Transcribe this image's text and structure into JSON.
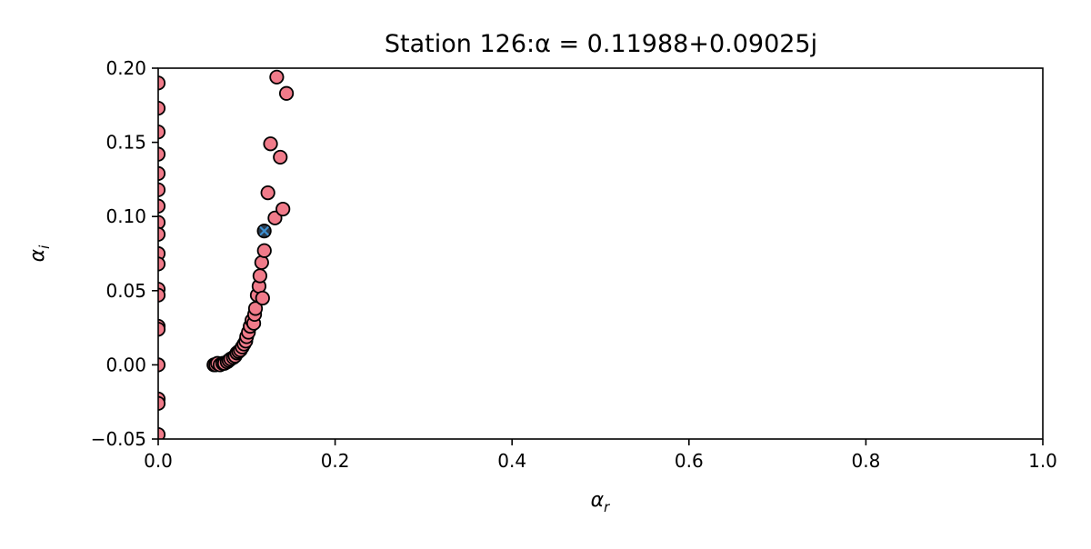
{
  "chart_data": {
    "type": "scatter",
    "title": "Station 126:α = 0.11988+0.09025j",
    "xlabel": {
      "symbol": "α",
      "subscript": "r"
    },
    "ylabel": {
      "symbol": "α",
      "subscript": "i"
    },
    "xlim": [
      0.0,
      1.0
    ],
    "ylim": [
      -0.05,
      0.2
    ],
    "xticks": [
      0.0,
      0.2,
      0.4,
      0.6,
      0.8,
      1.0
    ],
    "xtick_labels": [
      "0.0",
      "0.2",
      "0.4",
      "0.6",
      "0.8",
      "1.0"
    ],
    "yticks": [
      -0.05,
      0.0,
      0.05,
      0.1,
      0.15,
      0.2
    ],
    "ytick_labels": [
      "−0.05",
      "0.00",
      "0.05",
      "0.10",
      "0.15",
      "0.20"
    ],
    "grid": false,
    "series": [
      {
        "marker": "circle",
        "color": "#f07b8a",
        "edge_color": "#000000",
        "points": [
          [
            0.0,
            0.19
          ],
          [
            0.0,
            0.173
          ],
          [
            0.0,
            0.157
          ],
          [
            0.0,
            0.142
          ],
          [
            0.0,
            0.129
          ],
          [
            0.0,
            0.118
          ],
          [
            0.0,
            0.107
          ],
          [
            0.0,
            0.096
          ],
          [
            0.0,
            0.088
          ],
          [
            0.0,
            0.075
          ],
          [
            0.0,
            0.068
          ],
          [
            0.0,
            0.051
          ],
          [
            0.0,
            0.047
          ],
          [
            0.0,
            0.026
          ],
          [
            0.0,
            0.024
          ],
          [
            0.0,
            0.0
          ],
          [
            0.0,
            -0.023
          ],
          [
            0.0,
            -0.026
          ],
          [
            0.0,
            -0.047
          ],
          [
            0.063,
            0.0
          ],
          [
            0.065,
            0.0
          ],
          [
            0.067,
            0.001
          ],
          [
            0.07,
            0.0
          ],
          [
            0.073,
            0.001
          ],
          [
            0.075,
            0.001
          ],
          [
            0.078,
            0.002
          ],
          [
            0.08,
            0.003
          ],
          [
            0.082,
            0.004
          ],
          [
            0.085,
            0.005
          ],
          [
            0.087,
            0.006
          ],
          [
            0.089,
            0.008
          ],
          [
            0.091,
            0.009
          ],
          [
            0.093,
            0.01
          ],
          [
            0.095,
            0.012
          ],
          [
            0.097,
            0.014
          ],
          [
            0.099,
            0.016
          ],
          [
            0.1,
            0.019
          ],
          [
            0.102,
            0.022
          ],
          [
            0.104,
            0.026
          ],
          [
            0.106,
            0.03
          ],
          [
            0.108,
            0.028
          ],
          [
            0.109,
            0.034
          ],
          [
            0.11,
            0.038
          ],
          [
            0.112,
            0.047
          ],
          [
            0.114,
            0.053
          ],
          [
            0.115,
            0.06
          ],
          [
            0.117,
            0.069
          ],
          [
            0.118,
            0.045
          ],
          [
            0.12,
            0.077
          ],
          [
            0.124,
            0.116
          ],
          [
            0.127,
            0.149
          ],
          [
            0.132,
            0.099
          ],
          [
            0.134,
            0.194
          ],
          [
            0.138,
            0.14
          ],
          [
            0.141,
            0.105
          ],
          [
            0.145,
            0.183
          ]
        ]
      },
      {
        "marker": "x",
        "color": "#3d8fd1",
        "marker_face_color": "#2b3a4a",
        "points": [
          [
            0.11988,
            0.09025
          ]
        ]
      }
    ]
  }
}
